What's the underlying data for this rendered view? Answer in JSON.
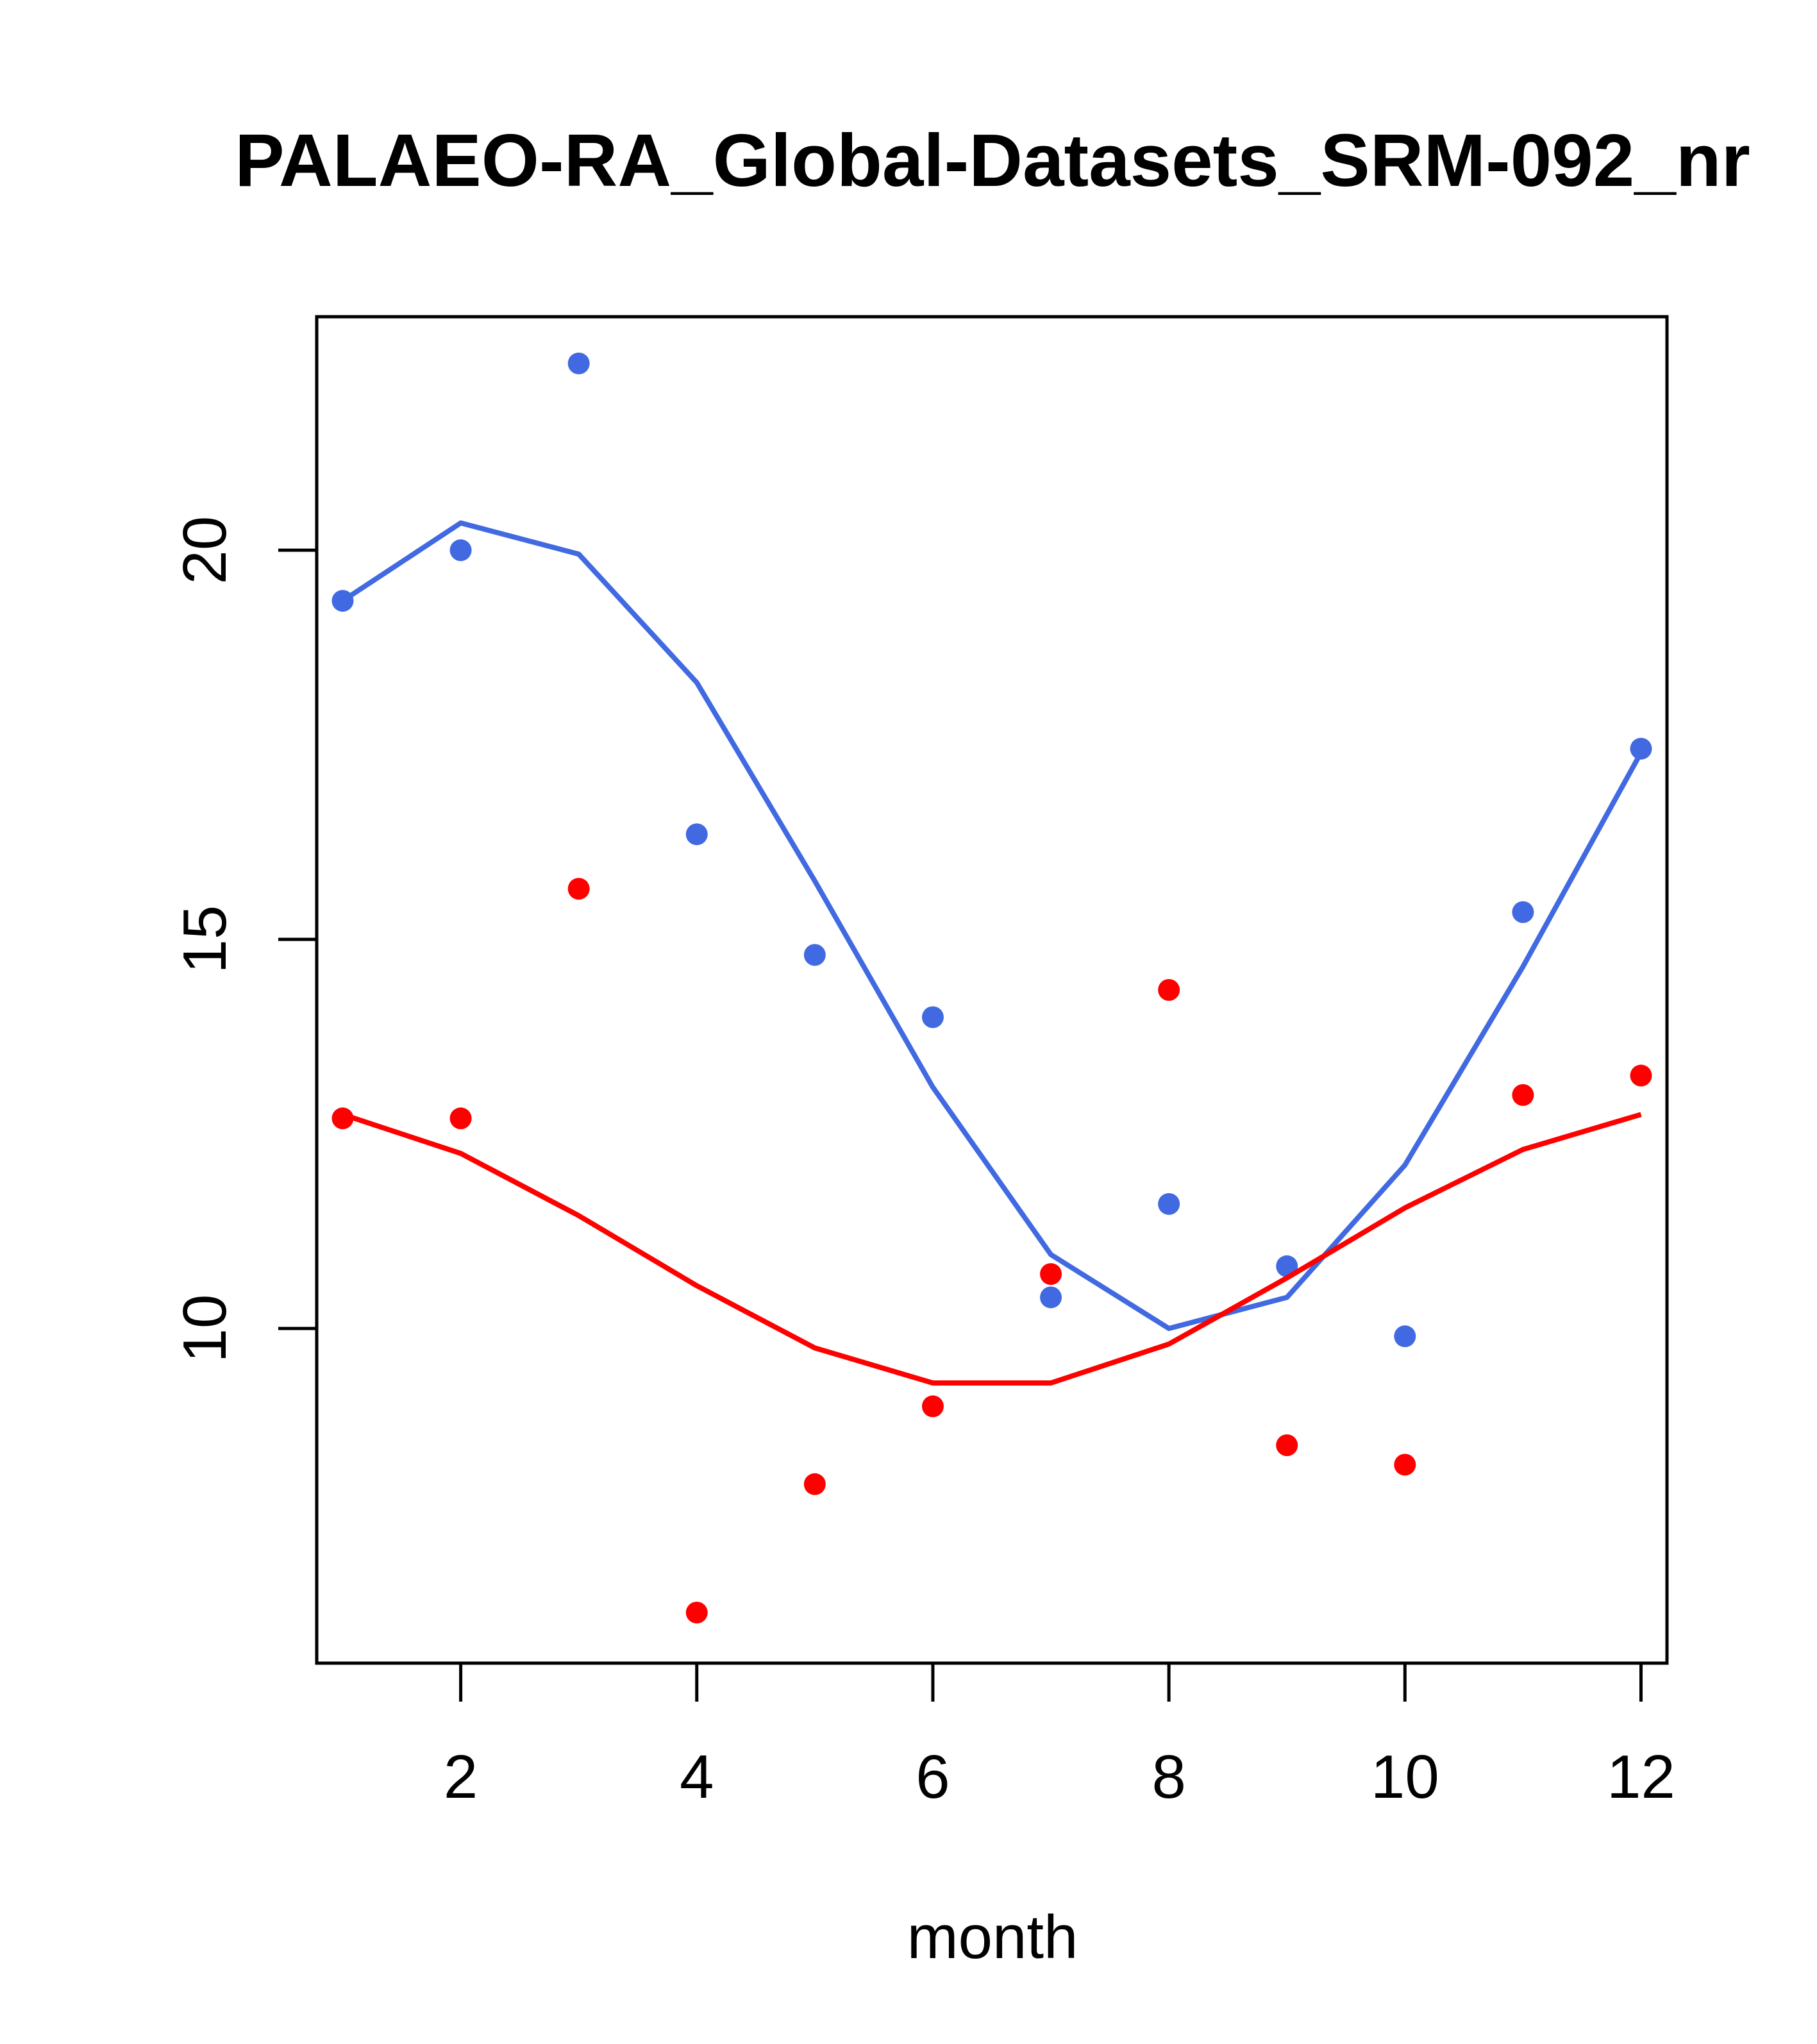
{
  "chart_data": {
    "type": "line",
    "title": "PALAEO-RA_Global-Datasets_SRM-092_nr",
    "xlabel": "month",
    "ylabel": "",
    "xlim": [
      0.78,
      12.22
    ],
    "ylim": [
      5.7,
      23.0
    ],
    "x_ticks": [
      2,
      4,
      6,
      8,
      10,
      12
    ],
    "y_ticks": [
      10,
      15,
      20
    ],
    "x": [
      1,
      2,
      3,
      4,
      5,
      6,
      7,
      8,
      9,
      10,
      11,
      12
    ],
    "series": [
      {
        "name": "blue-points",
        "kind": "points",
        "color": "#4169E1",
        "values": [
          19.35,
          20.0,
          22.4,
          16.35,
          14.8,
          14.0,
          10.4,
          11.6,
          10.8,
          9.9,
          15.35,
          17.45
        ]
      },
      {
        "name": "blue-line",
        "kind": "line",
        "color": "#4169E1",
        "values": [
          19.35,
          20.35,
          19.95,
          18.3,
          15.75,
          13.1,
          10.95,
          10.0,
          10.4,
          12.1,
          14.65,
          17.4
        ]
      },
      {
        "name": "red-points",
        "kind": "points",
        "color": "#FF0000",
        "values": [
          12.7,
          12.7,
          15.65,
          6.35,
          8.0,
          9.0,
          10.7,
          14.35,
          8.5,
          8.25,
          13.0,
          13.25
        ]
      },
      {
        "name": "red-line",
        "kind": "line",
        "color": "#FF0000",
        "values": [
          12.75,
          12.25,
          11.45,
          10.55,
          9.75,
          9.3,
          9.3,
          9.8,
          10.65,
          11.55,
          12.3,
          12.75
        ]
      }
    ]
  }
}
